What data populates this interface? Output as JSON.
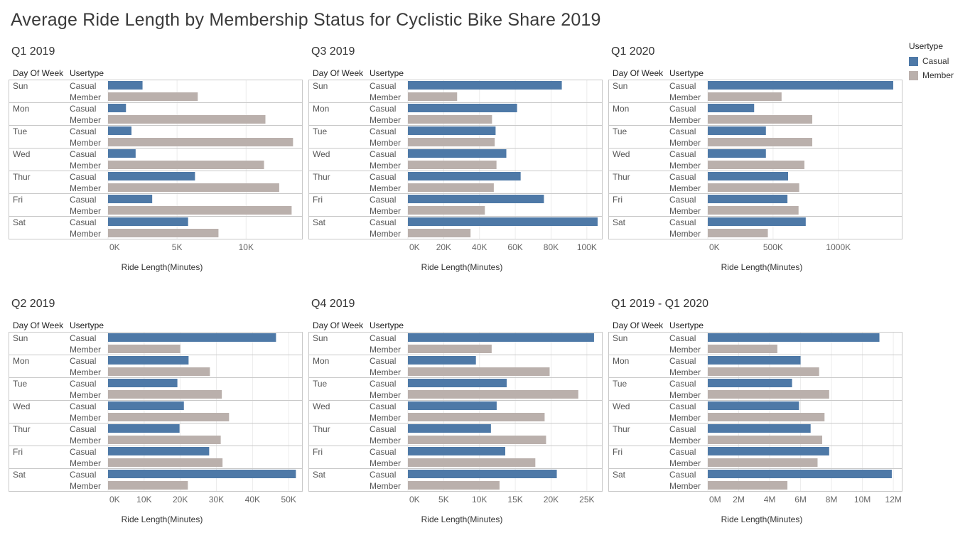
{
  "title": "Average Ride Length by Membership Status for Cyclistic Bike Share 2019",
  "headers": {
    "day": "Day Of Week",
    "usertype": "Usertype"
  },
  "legend": {
    "title": "Usertype",
    "items": [
      {
        "label": "Casual",
        "color": "#4e79a7"
      },
      {
        "label": "Member",
        "color": "#bab0ac"
      }
    ]
  },
  "chart_data": [
    {
      "type": "bar",
      "title": "Q1 2019",
      "xlabel": "Ride Length(Minutes)",
      "categories": [
        "Sun",
        "Mon",
        "Tue",
        "Wed",
        "Thur",
        "Fri",
        "Sat"
      ],
      "series": [
        {
          "name": "Casual",
          "values": [
            2500,
            1300,
            1700,
            2000,
            6300,
            3200,
            5800
          ]
        },
        {
          "name": "Member",
          "values": [
            6500,
            11400,
            13400,
            11300,
            12400,
            13300,
            8000
          ]
        }
      ],
      "ticks": [
        0,
        5000,
        10000
      ],
      "tick_labels": [
        "0K",
        "5K",
        "10K"
      ],
      "xlim": [
        0,
        14000
      ]
    },
    {
      "type": "bar",
      "title": "Q3 2019",
      "xlabel": "Ride Length(Minutes)",
      "categories": [
        "Sun",
        "Mon",
        "Tue",
        "Wed",
        "Thur",
        "Fri",
        "Sat"
      ],
      "series": [
        {
          "name": "Casual",
          "values": [
            86000,
            61000,
            49000,
            55000,
            63000,
            76000,
            106000
          ]
        },
        {
          "name": "Member",
          "values": [
            27500,
            47000,
            48500,
            49500,
            48000,
            43000,
            35000
          ]
        }
      ],
      "ticks": [
        0,
        20000,
        40000,
        60000,
        80000,
        100000
      ],
      "tick_labels": [
        "0K",
        "20K",
        "40K",
        "60K",
        "80K",
        "100K"
      ],
      "xlim": [
        0,
        108000
      ]
    },
    {
      "type": "bar",
      "title": "Q1 2020",
      "xlabel": "Ride Length(Minutes)",
      "categories": [
        "Sun",
        "Mon",
        "Tue",
        "Wed",
        "Thur",
        "Fri",
        "Sat"
      ],
      "series": [
        {
          "name": "Casual",
          "values": [
            1420000,
            355000,
            445000,
            445000,
            615000,
            610000,
            750000
          ]
        },
        {
          "name": "Member",
          "values": [
            565000,
            800000,
            800000,
            740000,
            700000,
            695000,
            460000
          ]
        }
      ],
      "ticks": [
        0,
        500000,
        1000000
      ],
      "tick_labels": [
        "0K",
        "500K",
        "1000K"
      ],
      "xlim": [
        0,
        1480000
      ]
    },
    {
      "type": "bar",
      "title": "Q2 2019",
      "xlabel": "Ride Length(Minutes)",
      "categories": [
        "Sun",
        "Mon",
        "Tue",
        "Wed",
        "Thur",
        "Fri",
        "Sat"
      ],
      "series": [
        {
          "name": "Casual",
          "values": [
            46500,
            22300,
            19200,
            21000,
            19800,
            28000,
            52000
          ]
        },
        {
          "name": "Member",
          "values": [
            20000,
            28200,
            31500,
            33500,
            31200,
            31700,
            22100
          ]
        }
      ],
      "ticks": [
        0,
        10000,
        20000,
        30000,
        40000,
        50000
      ],
      "tick_labels": [
        "0K",
        "10K",
        "20K",
        "30K",
        "40K",
        "50K"
      ],
      "xlim": [
        0,
        53500
      ]
    },
    {
      "type": "bar",
      "title": "Q4 2019",
      "xlabel": "Ride Length(Minutes)",
      "categories": [
        "Sun",
        "Mon",
        "Tue",
        "Wed",
        "Thur",
        "Fri",
        "Sat"
      ],
      "series": [
        {
          "name": "Casual",
          "values": [
            26000,
            9500,
            13800,
            12400,
            11600,
            13600,
            20800
          ]
        },
        {
          "name": "Member",
          "values": [
            11700,
            19800,
            23800,
            19100,
            19300,
            17800,
            12800
          ]
        }
      ],
      "ticks": [
        0,
        5000,
        10000,
        15000,
        20000,
        25000
      ],
      "tick_labels": [
        "0K",
        "5K",
        "10K",
        "15K",
        "20K",
        "25K"
      ],
      "xlim": [
        0,
        27000
      ]
    },
    {
      "type": "bar",
      "title": "Q1 2019 - Q1 2020",
      "xlabel": "Ride Length(Minutes)",
      "categories": [
        "Sun",
        "Mon",
        "Tue",
        "Wed",
        "Thur",
        "Fri",
        "Sat"
      ],
      "series": [
        {
          "name": "Casual",
          "values": [
            11100000,
            6000000,
            5450000,
            5900000,
            6650000,
            7850000,
            11900000
          ]
        },
        {
          "name": "Member",
          "values": [
            4500000,
            7200000,
            7850000,
            7550000,
            7400000,
            7100000,
            5150000
          ]
        }
      ],
      "ticks": [
        0,
        2000000,
        4000000,
        6000000,
        8000000,
        10000000,
        12000000
      ],
      "tick_labels": [
        "0M",
        "2M",
        "4M",
        "6M",
        "8M",
        "10M",
        "12M"
      ],
      "xlim": [
        0,
        12500000
      ]
    }
  ]
}
